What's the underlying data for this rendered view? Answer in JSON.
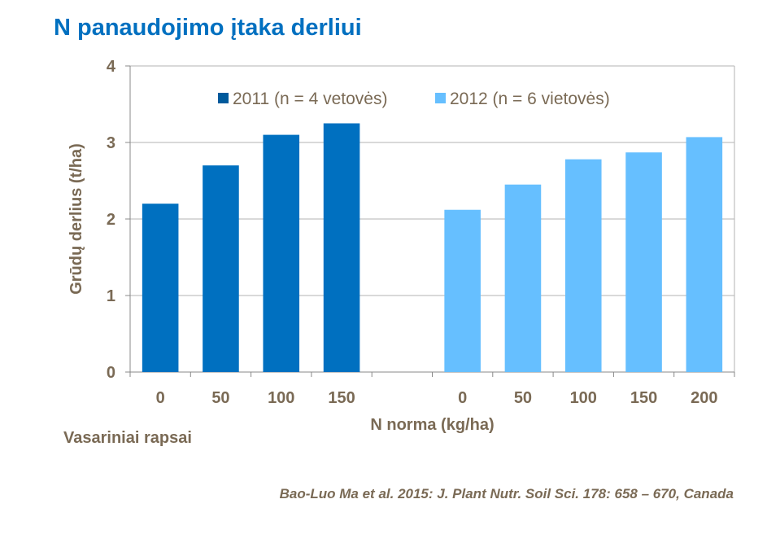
{
  "title": "N panaudojimo įtaka derliui",
  "subtitle": "Vasariniai rapsai",
  "citation": "Bao-Luo Ma et al. 2015: J. Plant Nutr. Soil Sci. 178: 658 – 670, Canada",
  "chart_data": {
    "type": "bar",
    "xlabel": "N norma (kg/ha)",
    "ylabel": "Grūdų derlius (t/ha)",
    "ylim": [
      0,
      4
    ],
    "yticks": [
      "0",
      "1",
      "2",
      "3",
      "4"
    ],
    "grid": true,
    "legend_position": "top",
    "categories": [
      "0",
      "50",
      "100",
      "150",
      "",
      "0",
      "50",
      "100",
      "150",
      "200"
    ],
    "series": [
      {
        "name": "2011 (n = 4 vetovės)",
        "color": "#0070c0",
        "legend_color": "#005a9c",
        "values": [
          2.2,
          2.7,
          3.1,
          3.25,
          null,
          null,
          null,
          null,
          null,
          null
        ]
      },
      {
        "name": "2012 (n = 6 vietovės)",
        "color": "#66bfff",
        "legend_color": "#66bfff",
        "values": [
          null,
          null,
          null,
          null,
          null,
          2.12,
          2.45,
          2.78,
          2.87,
          3.07
        ]
      }
    ]
  }
}
